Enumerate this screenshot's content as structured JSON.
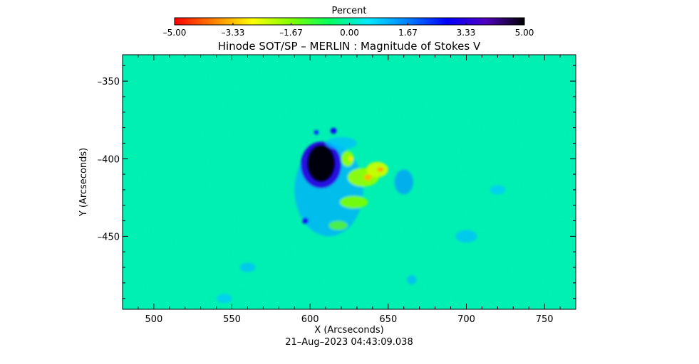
{
  "chart_data": {
    "type": "heatmap",
    "title": "Hinode SOT/SP – MERLIN : Magnitude of Stokes V",
    "xlabel": "X (Arcseconds)",
    "ylabel": "Y (Arcseconds)",
    "timestamp": "21–Aug–2023 04:43:09.038",
    "xlim": [
      480,
      770
    ],
    "ylim": [
      -497,
      -333
    ],
    "x_ticks": [
      500,
      550,
      600,
      650,
      700,
      750
    ],
    "y_ticks": [
      -350,
      -400,
      -450
    ],
    "colorbar": {
      "title": "Percent",
      "range": [
        -5.0,
        5.0
      ],
      "tick_values": [
        -5.0,
        -3.33,
        -1.67,
        0.0,
        1.67,
        3.33,
        5.0
      ],
      "tick_labels": [
        "–5.00",
        "–3.33",
        "–1.67",
        "0.00",
        "1.67",
        "3.33",
        "5.00"
      ],
      "colors": [
        "#ff0000",
        "#ff8000",
        "#ffff00",
        "#80ff00",
        "#00ff60",
        "#00e8ff",
        "#0080ff",
        "#0000ff",
        "#5000c0",
        "#000000"
      ]
    },
    "background_value": 0.0,
    "features": [
      {
        "name": "sunspot-umbra",
        "x": 607,
        "y": -403,
        "rx": 9,
        "ry": 12,
        "value": 5.0
      },
      {
        "name": "sunspot-penumbra",
        "x": 607,
        "y": -404,
        "rx": 13,
        "ry": 15,
        "value": 3.3
      },
      {
        "name": "blue-speck-a",
        "x": 615,
        "y": -382,
        "rx": 2,
        "ry": 2,
        "value": 3.0
      },
      {
        "name": "blue-speck-b",
        "x": 597,
        "y": -440,
        "rx": 2,
        "ry": 2,
        "value": 3.0
      },
      {
        "name": "blue-speck-c",
        "x": 604,
        "y": -383,
        "rx": 1.5,
        "ry": 1.5,
        "value": 2.5
      },
      {
        "name": "yellow-plage-a",
        "x": 634,
        "y": -412,
        "rx": 10,
        "ry": 6,
        "value": -1.8
      },
      {
        "name": "yellow-plage-b",
        "x": 643,
        "y": -407,
        "rx": 7,
        "ry": 5,
        "value": -2.3
      },
      {
        "name": "yellow-plage-c",
        "x": 624,
        "y": -400,
        "rx": 4,
        "ry": 5,
        "value": -1.8
      },
      {
        "name": "yellow-plage-d",
        "x": 628,
        "y": -428,
        "rx": 9,
        "ry": 4,
        "value": -1.6
      },
      {
        "name": "yellow-plage-e",
        "x": 618,
        "y": -443,
        "rx": 6,
        "ry": 3,
        "value": -1.4
      },
      {
        "name": "orange-kernel-a",
        "x": 637,
        "y": -412,
        "rx": 2.5,
        "ry": 2,
        "value": -3.4
      },
      {
        "name": "orange-kernel-b",
        "x": 645,
        "y": -407,
        "rx": 2,
        "ry": 1.5,
        "value": -3.6
      },
      {
        "name": "orange-kernel-c",
        "x": 626,
        "y": -400,
        "rx": 1.5,
        "ry": 1.5,
        "value": -3.0
      },
      {
        "name": "cyan-halo-a",
        "x": 612,
        "y": -420,
        "rx": 22,
        "ry": 30,
        "value": 1.2
      },
      {
        "name": "cyan-halo-b",
        "x": 660,
        "y": -415,
        "rx": 6,
        "ry": 8,
        "value": 1.4
      },
      {
        "name": "cyan-patch-a",
        "x": 620,
        "y": -390,
        "rx": 10,
        "ry": 4,
        "value": 1.0
      },
      {
        "name": "cyan-patch-b",
        "x": 700,
        "y": -450,
        "rx": 7,
        "ry": 4,
        "value": 1.0
      },
      {
        "name": "cyan-patch-c",
        "x": 560,
        "y": -470,
        "rx": 5,
        "ry": 3,
        "value": 1.0
      },
      {
        "name": "cyan-patch-d",
        "x": 720,
        "y": -420,
        "rx": 5,
        "ry": 3,
        "value": 0.9
      },
      {
        "name": "cyan-patch-e",
        "x": 545,
        "y": -490,
        "rx": 5,
        "ry": 3,
        "value": 0.9
      },
      {
        "name": "cyan-patch-f",
        "x": 665,
        "y": -478,
        "rx": 3,
        "ry": 3,
        "value": 1.1
      }
    ]
  }
}
